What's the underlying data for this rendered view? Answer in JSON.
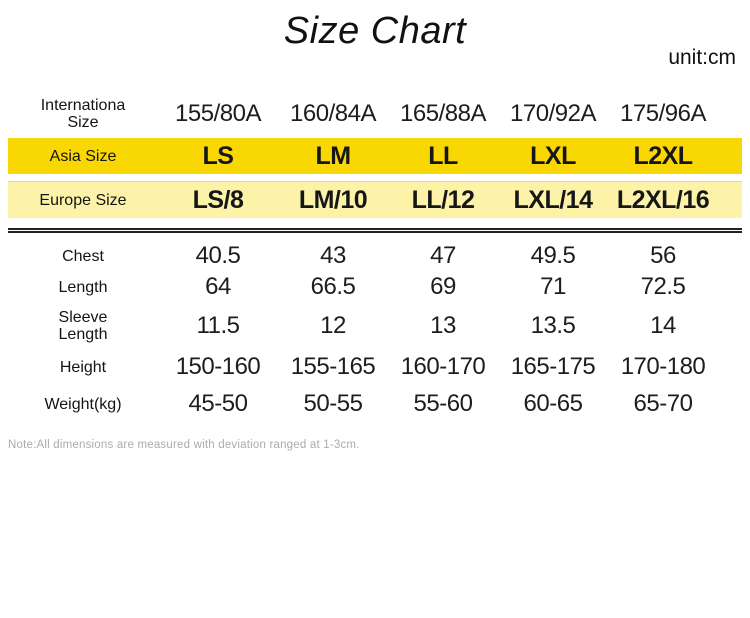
{
  "header": {
    "title": "Size Chart",
    "unit_label": "unit:cm"
  },
  "footer": {
    "note": "Note:All dimensions are measured with deviation ranged at 1-3cm."
  },
  "colors": {
    "asia_row_bg": "#F9D703",
    "europe_row_bg": "#FCF3A9",
    "divider_rule": "#232323",
    "note_text": "#ACACAC",
    "body_text": "#1A1A1A"
  },
  "chart_data": {
    "type": "table",
    "title": "Size Chart",
    "unit": "cm",
    "layout": "rows are size systems and garment measurements; 5 size columns",
    "rows": [
      {
        "name": "international-size",
        "label_lines": [
          "Internationa",
          "Size"
        ],
        "style": "plain",
        "values": [
          "155/80A",
          "160/84A",
          "165/88A",
          "170/92A",
          "175/96A"
        ]
      },
      {
        "name": "asia-size",
        "label": "Asia Size",
        "style": "yellow",
        "bold": true,
        "values": [
          "LS",
          "LM",
          "LL",
          "LXL",
          "L2XL"
        ]
      },
      {
        "name": "europe-size",
        "label": "Europe Size",
        "style": "pale-yellow",
        "bold": true,
        "values": [
          "LS/8",
          "LM/10",
          "LL/12",
          "LXL/14",
          "L2XL/16"
        ]
      },
      {
        "name": "chest",
        "label": "Chest",
        "values": [
          "40.5",
          "43",
          "47",
          "49.5",
          "56"
        ]
      },
      {
        "name": "length",
        "label": "Length",
        "values": [
          "64",
          "66.5",
          "69",
          "71",
          "72.5"
        ]
      },
      {
        "name": "sleeve-length",
        "label_lines": [
          "Sleeve",
          "Length"
        ],
        "values": [
          "11.5",
          "12",
          "13",
          "13.5",
          "14"
        ]
      },
      {
        "name": "height",
        "label": "Height",
        "values": [
          "150-160",
          "155-165",
          "160-170",
          "165-175",
          "170-180"
        ]
      },
      {
        "name": "weight",
        "label": "Weight(kg)",
        "values": [
          "45-50",
          "50-55",
          "55-60",
          "60-65",
          "65-70"
        ]
      }
    ]
  }
}
